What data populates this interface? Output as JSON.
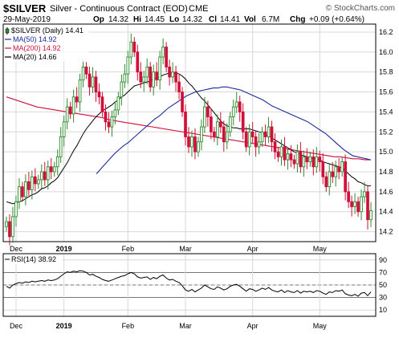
{
  "header": {
    "symbol": "$SILVER",
    "description": "Silver - Continuous Contract (EOD)",
    "exchange": "CME",
    "watermark": "© StockCharts.com",
    "date": "29-May-2019",
    "open_label": "Op",
    "open": "14.32",
    "high_label": "Hi",
    "high": "14.45",
    "low_label": "Lo",
    "low": "14.32",
    "close_label": "Cl",
    "close": "14.41",
    "volume_label": "Vol",
    "volume": "6.7M",
    "change_label": "Chg",
    "change": "+0.09 (+0.64%)"
  },
  "colors": {
    "up": "#2e8b2e",
    "down": "#d0103a",
    "ma50": "#1c2b9a",
    "ma200": "#d0103a",
    "ma20": "#000000",
    "grid": "#d8d8d8",
    "rsi": "#000000"
  },
  "chart_data": [
    {
      "type": "candlestick",
      "legend": [
        {
          "label": "$SILVER (Daily) 14.41",
          "color": "#000000",
          "icon": "candle-icon"
        },
        {
          "label": "MA(50) 14.92",
          "color": "#1c2b9a"
        },
        {
          "label": "MA(200) 14.92",
          "color": "#d0103a"
        },
        {
          "label": "MA(20) 14.66",
          "color": "#000000"
        }
      ],
      "legend_position": "top-left",
      "y_ticks": [
        "16.2",
        "16.0",
        "15.8",
        "15.6",
        "15.4",
        "15.2",
        "15.0",
        "14.8",
        "14.6",
        "14.4",
        "14.2"
      ],
      "y_tick_values": [
        16.2,
        16.0,
        15.8,
        15.6,
        15.4,
        15.2,
        15.0,
        14.8,
        14.6,
        14.4,
        14.2
      ],
      "ylim": [
        14.1,
        16.28
      ],
      "x_labels": [
        {
          "label": "Dec",
          "index": 3,
          "bold": false
        },
        {
          "label": "2019",
          "index": 18,
          "bold": true
        },
        {
          "label": "Feb",
          "index": 38,
          "bold": false
        },
        {
          "label": "Mar",
          "index": 56,
          "bold": false
        },
        {
          "label": "Apr",
          "index": 77,
          "bold": false
        },
        {
          "label": "May",
          "index": 98,
          "bold": false
        }
      ],
      "grid": true,
      "closes": [
        14.3,
        14.15,
        14.35,
        14.5,
        14.65,
        14.55,
        14.7,
        14.62,
        14.75,
        14.68,
        14.72,
        14.8,
        14.72,
        14.85,
        14.8,
        14.85,
        14.95,
        15.15,
        15.3,
        15.45,
        15.38,
        15.55,
        15.5,
        15.72,
        15.85,
        15.78,
        15.65,
        15.75,
        15.6,
        15.55,
        15.4,
        15.3,
        15.25,
        15.35,
        15.42,
        15.55,
        15.7,
        15.78,
        15.95,
        16.1,
        16.0,
        15.8,
        15.7,
        15.75,
        15.85,
        15.65,
        15.8,
        15.72,
        15.95,
        16.05,
        15.85,
        15.75,
        15.8,
        15.7,
        15.6,
        15.4,
        15.15,
        15.05,
        15.15,
        15.0,
        15.1,
        15.25,
        15.45,
        15.35,
        15.2,
        15.15,
        15.3,
        15.25,
        15.1,
        15.2,
        15.35,
        15.45,
        15.5,
        15.4,
        15.2,
        15.05,
        15.2,
        15.15,
        15.05,
        15.1,
        15.2,
        15.15,
        15.25,
        15.1,
        15.0,
        14.95,
        15.05,
        14.92,
        14.98,
        14.92,
        14.88,
        15.0,
        14.85,
        14.95,
        14.9,
        14.95,
        14.85,
        14.95,
        14.9,
        14.75,
        14.65,
        14.8,
        14.75,
        14.85,
        14.8,
        14.9,
        14.6,
        14.5,
        14.45,
        14.5,
        14.4,
        14.55,
        14.6,
        14.32,
        14.41
      ],
      "ma20": [
        14.5,
        14.49,
        14.48,
        14.49,
        14.5,
        14.51,
        14.53,
        14.55,
        14.57,
        14.58,
        14.6,
        14.63,
        14.64,
        14.66,
        14.69,
        14.71,
        14.74,
        14.79,
        14.84,
        14.89,
        14.95,
        15.01,
        15.06,
        15.12,
        15.18,
        15.23,
        15.27,
        15.31,
        15.35,
        15.38,
        15.41,
        15.43,
        15.45,
        15.47,
        15.5,
        15.52,
        15.55,
        15.57,
        15.6,
        15.63,
        15.66,
        15.67,
        15.68,
        15.69,
        15.7,
        15.71,
        15.73,
        15.74,
        15.75,
        15.77,
        15.78,
        15.79,
        15.79,
        15.79,
        15.78,
        15.76,
        15.73,
        15.69,
        15.66,
        15.62,
        15.58,
        15.54,
        15.51,
        15.47,
        15.43,
        15.39,
        15.35,
        15.31,
        15.28,
        15.26,
        15.25,
        15.24,
        15.24,
        15.23,
        15.23,
        15.23,
        15.23,
        15.22,
        15.21,
        15.2,
        15.19,
        15.17,
        15.16,
        15.14,
        15.12,
        15.1,
        15.08,
        15.06,
        15.04,
        15.02,
        15.0,
        14.99,
        14.97,
        14.96,
        14.95,
        14.94,
        14.93,
        14.93,
        14.92,
        14.9,
        14.89,
        14.88,
        14.87,
        14.86,
        14.85,
        14.84,
        14.81,
        14.78,
        14.75,
        14.73,
        14.7,
        14.69,
        14.67,
        14.66,
        14.66
      ],
      "ma50": [
        null,
        null,
        null,
        null,
        null,
        null,
        null,
        null,
        null,
        null,
        null,
        null,
        null,
        null,
        null,
        null,
        null,
        null,
        null,
        null,
        14.78,
        14.83,
        14.88,
        14.93,
        14.98,
        15.02,
        15.06,
        15.09,
        15.13,
        15.17,
        15.21,
        15.25,
        15.29,
        15.33,
        15.36,
        15.4,
        15.44,
        15.47,
        15.5,
        15.53,
        15.56,
        15.58,
        15.6,
        15.61,
        15.62,
        15.63,
        15.64,
        15.64,
        15.65,
        15.65,
        15.64,
        15.63,
        15.62,
        15.6,
        15.58,
        15.56,
        15.54,
        15.52,
        15.49,
        15.46,
        15.44,
        15.42,
        15.4,
        15.38,
        15.36,
        15.34,
        15.32,
        15.3,
        15.27,
        15.24,
        15.21,
        15.18,
        15.14,
        15.1,
        15.06,
        15.02,
        14.99,
        14.96,
        14.95,
        14.94,
        14.93,
        14.92
      ],
      "ma200": [
        15.55,
        15.53,
        15.51,
        15.49,
        15.47,
        15.45,
        15.44,
        15.43,
        15.42,
        15.41,
        15.4,
        15.39,
        15.38,
        15.37,
        15.36,
        15.35,
        15.34,
        15.32,
        15.31,
        15.3,
        15.29,
        15.28,
        15.27,
        15.26,
        15.25,
        15.24,
        15.23,
        15.22,
        15.21,
        15.2,
        15.19,
        15.18,
        15.17,
        15.16,
        15.15,
        15.14,
        15.13,
        15.12,
        15.11,
        15.1,
        15.09,
        15.08,
        15.07,
        15.06,
        15.05,
        15.04,
        15.03,
        15.02,
        15.01,
        15.0,
        14.99,
        14.98,
        14.97,
        14.96,
        14.95,
        14.95,
        14.94,
        14.93,
        14.93,
        14.92,
        14.92
      ],
      "ma200_start_index": 0,
      "ma200_step": 1.0
    },
    {
      "type": "line",
      "title": "RSI(14) 38.92",
      "legend_position": "top-left",
      "y_ticks": [
        "90",
        "70",
        "50",
        "30",
        "10"
      ],
      "y_tick_values": [
        90,
        70,
        50,
        30,
        10
      ],
      "ylim": [
        0,
        100
      ],
      "reference_lines": [
        70,
        50,
        30
      ],
      "x_labels": [
        {
          "label": "Dec",
          "index": 3,
          "bold": false
        },
        {
          "label": "2019",
          "index": 18,
          "bold": true
        },
        {
          "label": "Feb",
          "index": 38,
          "bold": false
        },
        {
          "label": "Mar",
          "index": 56,
          "bold": false
        },
        {
          "label": "Apr",
          "index": 77,
          "bold": false
        },
        {
          "label": "May",
          "index": 98,
          "bold": false
        }
      ],
      "grid": true,
      "values": [
        48,
        45,
        50,
        52,
        54,
        53,
        55,
        54,
        56,
        55,
        56,
        57,
        56,
        58,
        57,
        58,
        60,
        64,
        68,
        71,
        70,
        72,
        71,
        73,
        72,
        70,
        66,
        67,
        64,
        62,
        59,
        57,
        56,
        58,
        60,
        62,
        64,
        65,
        68,
        70,
        68,
        63,
        61,
        62,
        63,
        59,
        62,
        60,
        64,
        66,
        61,
        58,
        59,
        56,
        54,
        49,
        42,
        40,
        43,
        39,
        42,
        45,
        50,
        47,
        44,
        43,
        47,
        45,
        42,
        44,
        48,
        50,
        51,
        48,
        44,
        40,
        44,
        43,
        40,
        42,
        45,
        43,
        46,
        42,
        40,
        39,
        42,
        38,
        41,
        39,
        38,
        41,
        37,
        40,
        39,
        40,
        38,
        41,
        40,
        37,
        35,
        39,
        38,
        41,
        40,
        42,
        36,
        34,
        33,
        35,
        32,
        37,
        38,
        33,
        38.92
      ]
    }
  ]
}
